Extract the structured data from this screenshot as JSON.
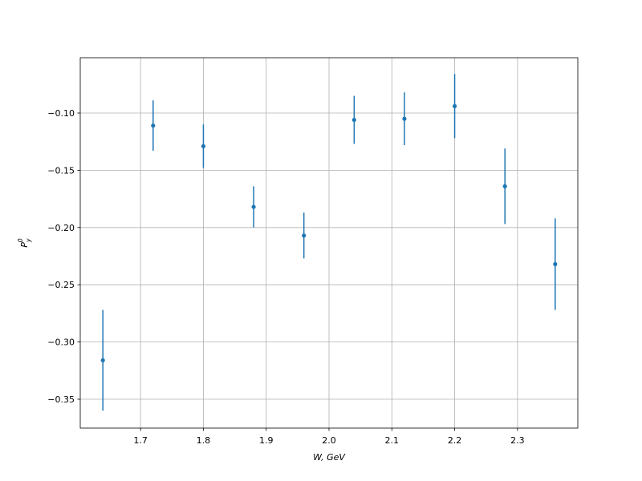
{
  "chart_data": {
    "type": "errorbar",
    "xlabel": "W, GeV",
    "ylabel": {
      "base": "P",
      "sub": "y",
      "sup": "0"
    },
    "x": [
      1.64,
      1.72,
      1.8,
      1.88,
      1.96,
      2.04,
      2.12,
      2.2,
      2.28,
      2.36
    ],
    "series": [
      {
        "color": "#1f77b4",
        "values": [
          -0.316,
          -0.111,
          -0.129,
          -0.182,
          -0.207,
          -0.106,
          -0.105,
          -0.094,
          -0.164,
          -0.232
        ],
        "errors": [
          0.044,
          0.022,
          0.019,
          0.018,
          0.02,
          0.021,
          0.023,
          0.028,
          0.033,
          0.04
        ]
      }
    ],
    "xlim": [
      1.604,
      2.396
    ],
    "ylim": [
      -0.3752,
      -0.0517
    ],
    "xticks": [
      1.7,
      1.8,
      1.9,
      {
        "value": 2.0,
        "label": "2.0"
      },
      2.1,
      2.2,
      2.3
    ],
    "yticks": [
      {
        "value": -0.35,
        "label": "−0.35"
      },
      {
        "value": -0.3,
        "label": "−0.30"
      },
      {
        "value": -0.25,
        "label": "−0.25"
      },
      {
        "value": -0.2,
        "label": "−0.20"
      },
      {
        "value": -0.15,
        "label": "−0.15"
      },
      {
        "value": -0.1,
        "label": "−0.10"
      }
    ],
    "grid": true
  }
}
